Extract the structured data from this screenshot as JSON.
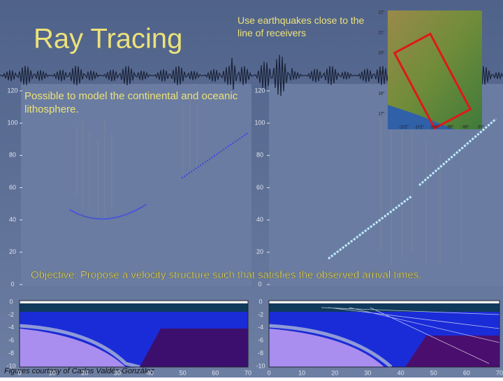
{
  "title": "Ray Tracing",
  "note_top": "Use earthquakes close to the line of receivers",
  "note_model": "Possible to model the continental and oceanic lithosphere.",
  "objective": "Objective: Propose a velocity structure such that satisfies the observed arrival times.",
  "credit": "Figures courtesy of Carlos Valdés-González",
  "upper_panels": {
    "yticks": [
      120,
      100,
      80,
      60,
      40,
      20,
      0
    ]
  },
  "lower_panels": {
    "yticks": [
      0,
      -2,
      -4,
      -6,
      -8,
      -10
    ],
    "xticks": [
      0,
      10,
      20,
      30,
      40,
      50,
      60,
      70
    ]
  },
  "map": {
    "lat_labels": [
      "22°",
      "21°",
      "20°",
      "19°",
      "18°",
      "17°"
    ],
    "lon_labels": [
      "-102°",
      "-101°",
      "-100°",
      "-99°",
      "-98°",
      "-97°"
    ]
  }
}
